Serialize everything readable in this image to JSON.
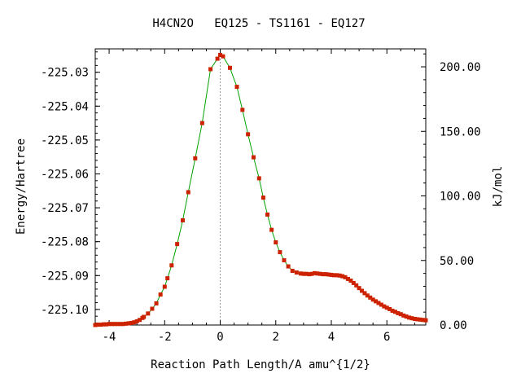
{
  "chart_data": {
    "type": "line",
    "title": "H4CN2O   EQ125 - TS1161 - EQ127",
    "xlabel": "Reaction Path Length/A amu^{1/2}",
    "ylabel": "Energy/Hartree",
    "y2label": "kJ/mol",
    "xlim": [
      -4.5,
      7.4
    ],
    "ylim": [
      -225.1046,
      -225.0231
    ],
    "y2lim": [
      0,
      213.9
    ],
    "x_ticks": [
      -4,
      -2,
      0,
      2,
      4,
      6
    ],
    "x_tick_labels": [
      "-4",
      "-2",
      "0",
      "2",
      "4",
      "6"
    ],
    "y_ticks": [
      -225.03,
      -225.04,
      -225.05,
      -225.06,
      -225.07,
      -225.08,
      -225.09,
      -225.1
    ],
    "y_tick_labels": [
      "-225.03",
      "-225.04",
      "-225.05",
      "-225.06",
      "-225.07",
      "-225.08",
      "-225.09",
      "-225.10"
    ],
    "y2_ticks": [
      0,
      50,
      100,
      150,
      200
    ],
    "y2_tick_labels": [
      "0.00",
      "50.00",
      "100.00",
      "150.00",
      "200.00"
    ],
    "ts_x": 0,
    "grid": false,
    "line_color": "#00a000",
    "marker_color": "#cc2200",
    "ts_line_color": "#999999",
    "series": [
      {
        "x": [
          -4.5,
          -4.4,
          -4.3,
          -4.2,
          -4.1,
          -4.0,
          -3.9,
          -3.8,
          -3.7,
          -3.6,
          -3.5,
          -3.4,
          -3.3,
          -3.2,
          -3.1,
          -3.0,
          -2.9,
          -2.8,
          -2.75,
          -2.6,
          -2.45,
          -2.3,
          -2.15,
          -2.0,
          -1.9,
          -1.75,
          -1.55,
          -1.35,
          -1.15,
          -0.9,
          -0.65,
          -0.35,
          -0.1,
          0.0,
          0.1,
          0.35,
          0.6,
          0.8,
          1.0,
          1.2,
          1.4,
          1.55,
          1.7,
          1.85,
          2.0,
          2.15,
          2.3,
          2.45,
          2.6,
          2.75,
          2.9,
          3.0,
          3.1,
          3.2,
          3.3,
          3.4,
          3.5,
          3.6,
          3.7,
          3.8,
          3.9,
          4.0,
          4.1,
          4.2,
          4.3,
          4.4,
          4.5,
          4.6,
          4.7,
          4.8,
          4.9,
          5.0,
          5.1,
          5.2,
          5.3,
          5.4,
          5.5,
          5.6,
          5.7,
          5.8,
          5.9,
          6.0,
          6.1,
          6.2,
          6.3,
          6.4,
          6.5,
          6.6,
          6.7,
          6.8,
          6.9,
          7.0,
          7.1,
          7.2,
          7.3,
          7.4
        ],
        "values": [
          -225.1046,
          -225.1045,
          -225.1045,
          -225.1044,
          -225.1044,
          -225.1043,
          -225.1043,
          -225.1043,
          -225.1043,
          -225.1043,
          -225.1043,
          -225.1042,
          -225.1041,
          -225.104,
          -225.1038,
          -225.1035,
          -225.1031,
          -225.1025,
          -225.1022,
          -225.1012,
          -225.0998,
          -225.0982,
          -225.0956,
          -225.0933,
          -225.0908,
          -225.087,
          -225.0807,
          -225.0737,
          -225.0654,
          -225.0554,
          -225.045,
          -225.0291,
          -225.026,
          -225.0249,
          -225.0253,
          -225.0287,
          -225.0343,
          -225.0411,
          -225.0483,
          -225.0551,
          -225.0613,
          -225.067,
          -225.072,
          -225.0765,
          -225.0802,
          -225.0831,
          -225.0855,
          -225.0873,
          -225.0886,
          -225.0891,
          -225.0894,
          -225.0895,
          -225.0895,
          -225.0896,
          -225.0895,
          -225.0893,
          -225.0894,
          -225.0895,
          -225.0896,
          -225.0896,
          -225.0897,
          -225.0898,
          -225.0899,
          -225.0899,
          -225.09,
          -225.0902,
          -225.0905,
          -225.091,
          -225.0915,
          -225.0922,
          -225.0929,
          -225.0937,
          -225.0945,
          -225.0952,
          -225.0959,
          -225.0965,
          -225.0971,
          -225.0976,
          -225.0981,
          -225.0986,
          -225.0991,
          -225.0995,
          -225.0999,
          -225.1004,
          -225.1007,
          -225.1011,
          -225.1014,
          -225.1018,
          -225.1021,
          -225.1024,
          -225.1026,
          -225.1028,
          -225.1029,
          -225.103,
          -225.1031,
          -225.1032
        ]
      }
    ]
  }
}
